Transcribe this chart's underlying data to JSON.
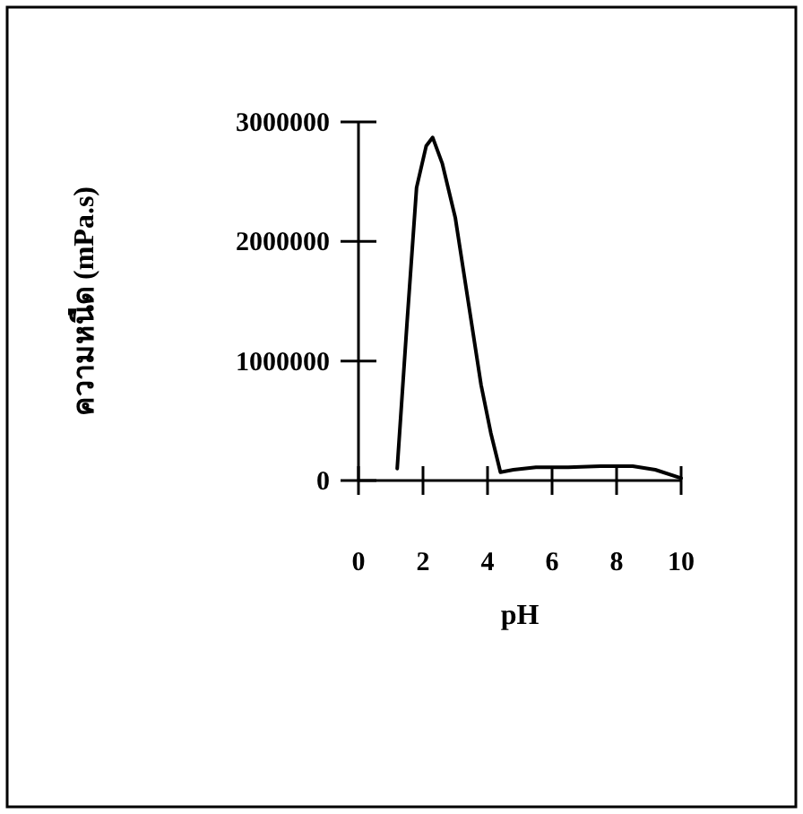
{
  "chart_data": {
    "type": "line",
    "xlabel": "pH",
    "ylabel": "ความหนืด (mPa.s)",
    "x": [
      1.2,
      1.5,
      1.8,
      2.1,
      2.3,
      2.6,
      3.0,
      3.4,
      3.8,
      4.1,
      4.4,
      4.8,
      5.5,
      6.5,
      7.5,
      8.5,
      9.2,
      10
    ],
    "series": [
      {
        "color": "#000000",
        "values": [
          100000,
          1300000,
          2450000,
          2800000,
          2870000,
          2650000,
          2200000,
          1500000,
          800000,
          400000,
          70000,
          90000,
          110000,
          110000,
          120000,
          120000,
          90000,
          20000
        ]
      }
    ],
    "xlim": [
      0,
      10
    ],
    "ylim": [
      0,
      3000000
    ],
    "xticks": [
      0,
      2,
      4,
      6,
      8,
      10
    ],
    "yticks": [
      0,
      1000000,
      2000000,
      3000000
    ]
  }
}
